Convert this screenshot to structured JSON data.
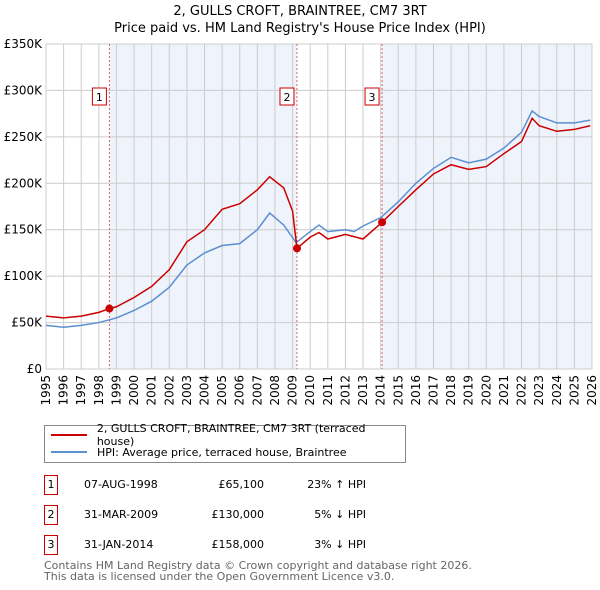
{
  "chart_data": {
    "type": "line",
    "title": "2, GULLS CROFT, BRAINTREE, CM7 3RT",
    "subtitle": "Price paid vs. HM Land Registry's House Price Index (HPI)",
    "xlim": [
      1995,
      2026
    ],
    "ylim": [
      0,
      350000
    ],
    "yticks": [
      {
        "v": 0,
        "label": "£0"
      },
      {
        "v": 50000,
        "label": "£50K"
      },
      {
        "v": 100000,
        "label": "£100K"
      },
      {
        "v": 150000,
        "label": "£150K"
      },
      {
        "v": 200000,
        "label": "£200K"
      },
      {
        "v": 250000,
        "label": "£250K"
      },
      {
        "v": 300000,
        "label": "£300K"
      },
      {
        "v": 350000,
        "label": "£350K"
      }
    ],
    "xticks": [
      "1995",
      "1996",
      "1997",
      "1998",
      "1999",
      "2000",
      "2001",
      "2002",
      "2003",
      "2004",
      "2005",
      "2006",
      "2007",
      "2008",
      "2009",
      "2010",
      "2011",
      "2012",
      "2013",
      "2014",
      "2015",
      "2016",
      "2017",
      "2018",
      "2019",
      "2020",
      "2021",
      "2022",
      "2023",
      "2024",
      "2025",
      "2026"
    ],
    "series": [
      {
        "name": "2, GULLS CROFT, BRAINTREE, CM7 3RT (terraced house)",
        "color": "#cc0000",
        "x": [
          1995,
          1996,
          1997,
          1998,
          1998.6,
          1999,
          2000,
          2001,
          2002,
          2003,
          2004,
          2005,
          2006,
          2007,
          2007.7,
          2008.5,
          2009.0,
          2009.25,
          2010,
          2010.5,
          2011,
          2012,
          2013,
          2014.08,
          2015,
          2016,
          2017,
          2018,
          2019,
          2020,
          2021,
          2022,
          2022.6,
          2023,
          2024,
          2025,
          2025.9
        ],
        "y": [
          57,
          55,
          57,
          61,
          65.1,
          67,
          77,
          89,
          107,
          137,
          150,
          172,
          178,
          193,
          207,
          195,
          170,
          130,
          142,
          147,
          140,
          145,
          140,
          158,
          175,
          193,
          210,
          220,
          215,
          218,
          232,
          245,
          270,
          262,
          256,
          258,
          262
        ]
      },
      {
        "name": "HPI: Average price, terraced house, Braintree",
        "color": "#5b8fd0",
        "x": [
          1995,
          1996,
          1997,
          1998,
          1999,
          2000,
          2001,
          2002,
          2003,
          2004,
          2005,
          2006,
          2007,
          2007.7,
          2008.5,
          2009.2,
          2010,
          2010.5,
          2011,
          2012,
          2012.5,
          2013,
          2014,
          2015,
          2016,
          2017,
          2018,
          2019,
          2020,
          2021,
          2022,
          2022.6,
          2023,
          2024,
          2025,
          2025.9
        ],
        "y": [
          47,
          45,
          47,
          50,
          55,
          63,
          73,
          88,
          112,
          125,
          133,
          135,
          150,
          168,
          155,
          136,
          148,
          155,
          148,
          150,
          148,
          154,
          163,
          180,
          200,
          216,
          228,
          222,
          226,
          238,
          255,
          278,
          272,
          265,
          265,
          268
        ]
      }
    ],
    "y_units": "thousands GBP",
    "sales": [
      {
        "n": "1",
        "x": 1998.6,
        "y": 65.1
      },
      {
        "n": "2",
        "x": 2009.25,
        "y": 130
      },
      {
        "n": "3",
        "x": 2014.08,
        "y": 158
      }
    ]
  },
  "legend": [
    "2, GULLS CROFT, BRAINTREE, CM7 3RT (terraced house)",
    "HPI: Average price, terraced house, Braintree"
  ],
  "transactions": [
    {
      "n": "1",
      "date": "07-AUG-1998",
      "price": "£65,100",
      "hpi": "23% ↑ HPI"
    },
    {
      "n": "2",
      "date": "31-MAR-2009",
      "price": "£130,000",
      "hpi": "5% ↓ HPI"
    },
    {
      "n": "3",
      "date": "31-JAN-2014",
      "price": "£158,000",
      "hpi": "3% ↓ HPI"
    }
  ],
  "footer": [
    "Contains HM Land Registry data © Crown copyright and database right 2026.",
    "This data is licensed under the Open Government Licence v3.0."
  ]
}
